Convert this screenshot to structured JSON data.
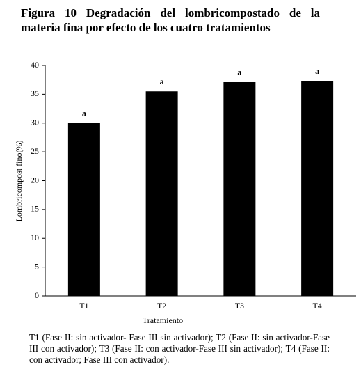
{
  "chart_data": {
    "type": "bar",
    "title": "Figura 10 Degradación del lombricompostado de la materia fina por efecto de los cuatro tratamientos",
    "categories": [
      "T1",
      "T2",
      "T3",
      "T4"
    ],
    "values": [
      30,
      35.5,
      37.1,
      37.3
    ],
    "annotations": [
      "a",
      "a",
      "a",
      "a"
    ],
    "color": "#000000",
    "x_label": "Tratamiento",
    "y_label": "Lombricompost fino(%)",
    "ylim": [
      0,
      40
    ],
    "yticks": [
      0,
      5,
      10,
      15,
      20,
      25,
      30,
      35,
      40
    ],
    "grid": false,
    "caption": "T1 (Fase II: sin activador- Fase III sin activador); T2 (Fase II: sin activador-Fase III con activador); T3 (Fase II: con activador-Fase III sin activador); T4 (Fase II: con activador; Fase III con activador)."
  }
}
